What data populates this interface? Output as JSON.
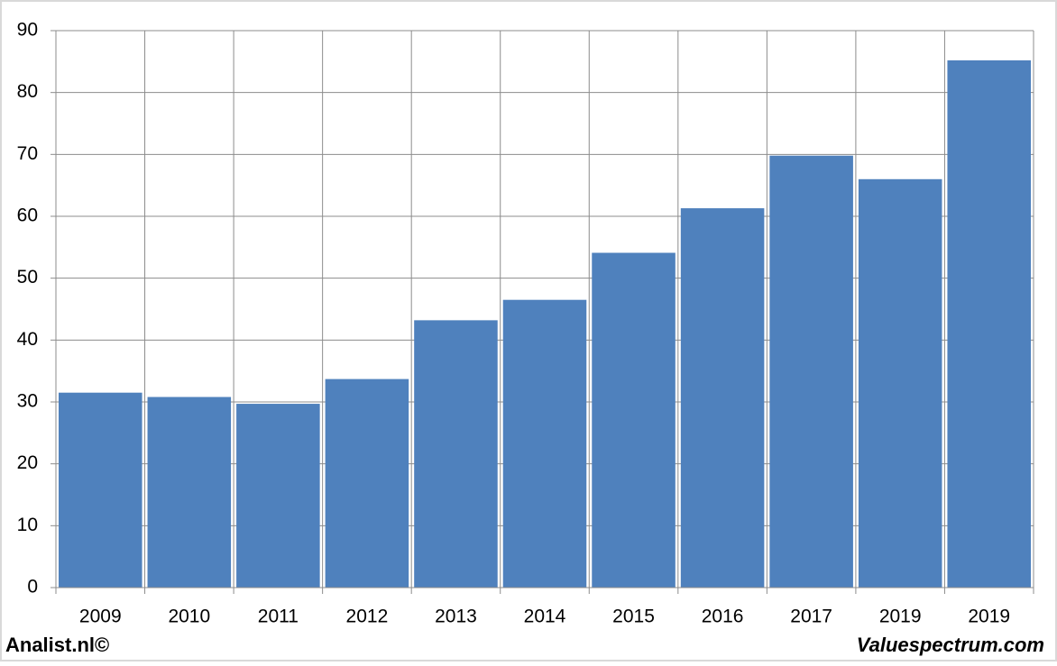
{
  "chart_data": {
    "type": "bar",
    "categories": [
      "2009",
      "2010",
      "2011",
      "2012",
      "2013",
      "2014",
      "2015",
      "2016",
      "2017",
      "2019",
      "2019"
    ],
    "values": [
      31.5,
      30.8,
      29.7,
      33.7,
      43.2,
      46.5,
      54.1,
      61.3,
      69.8,
      66.0,
      85.2
    ],
    "color": "#4f81bd",
    "ylim": [
      0,
      90
    ],
    "yticks": [
      0,
      10,
      20,
      30,
      40,
      50,
      60,
      70,
      80,
      90
    ],
    "grid": true
  },
  "footer": {
    "left": "Analist.nl©",
    "right": "Valuespectrum.com"
  }
}
